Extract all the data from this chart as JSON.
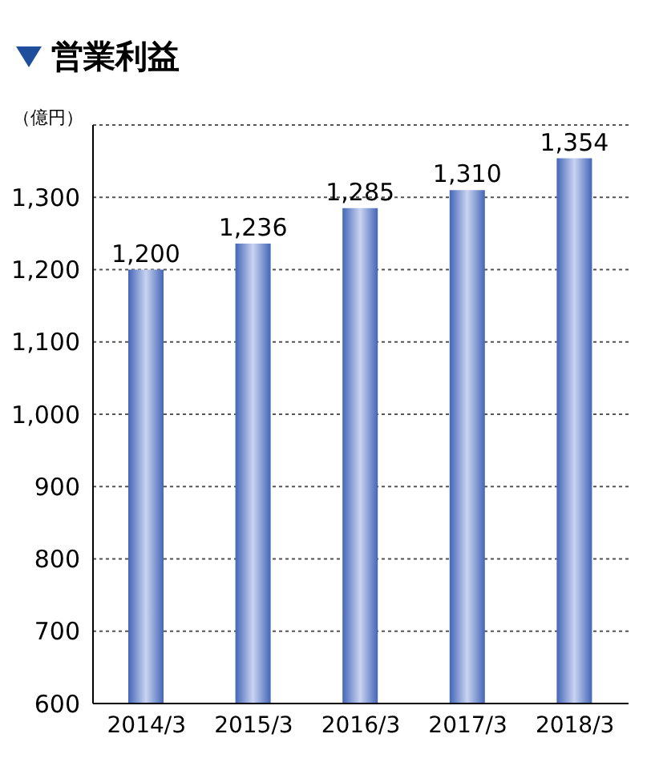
{
  "chart_data": {
    "type": "bar",
    "title": "営業利益",
    "ylabel": "（億円）",
    "categories": [
      "2014/3",
      "2015/3",
      "2016/3",
      "2017/3",
      "2018/3"
    ],
    "values": [
      1200,
      1236,
      1285,
      1310,
      1354
    ],
    "value_labels": [
      "1,200",
      "1,236",
      "1,285",
      "1,310",
      "1,354"
    ],
    "color": "#4466b8",
    "ylim": [
      600,
      1400
    ],
    "yticks": [
      {
        "value": 600,
        "label": "600"
      },
      {
        "value": 700,
        "label": "700"
      },
      {
        "value": 800,
        "label": "800"
      },
      {
        "value": 900,
        "label": "900"
      },
      {
        "value": 1000,
        "label": "1,000"
      },
      {
        "value": 1100,
        "label": "1,100"
      },
      {
        "value": 1200,
        "label": "1,200"
      },
      {
        "value": 1300,
        "label": "1,300"
      }
    ],
    "grid": "y"
  }
}
